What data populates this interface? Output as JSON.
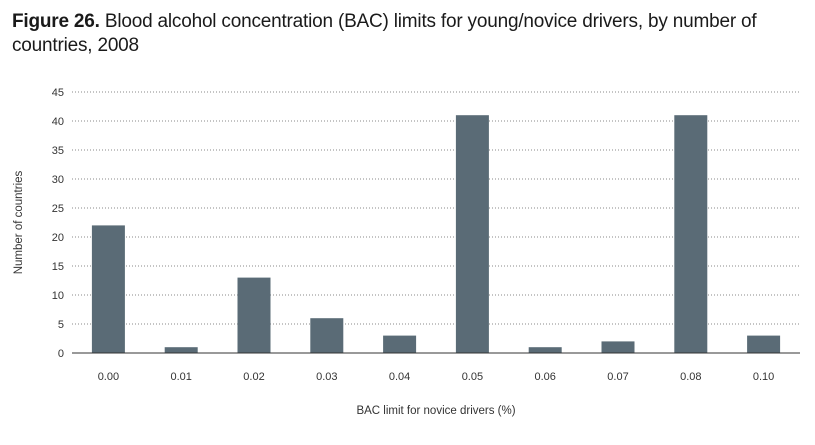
{
  "figure": {
    "label": "Figure 26.",
    "title": "Blood alcohol concentration (BAC) limits for young/novice drivers, by number of countries, 2008"
  },
  "chart_data": {
    "type": "bar",
    "categories": [
      "0.00",
      "0.01",
      "0.02",
      "0.03",
      "0.04",
      "0.05",
      "0.06",
      "0.07",
      "0.08",
      "0.10"
    ],
    "values": [
      22,
      1,
      13,
      6,
      3,
      41,
      1,
      2,
      41,
      3
    ],
    "xlabel": "BAC limit for novice drivers (%)",
    "ylabel": "Number of countries",
    "ylim": [
      0,
      45
    ],
    "yticks": [
      0,
      5,
      10,
      15,
      20,
      25,
      30,
      35,
      40,
      45
    ],
    "grid": true,
    "colors": {
      "bar": "#5a6b76",
      "grid": "#888888"
    }
  }
}
